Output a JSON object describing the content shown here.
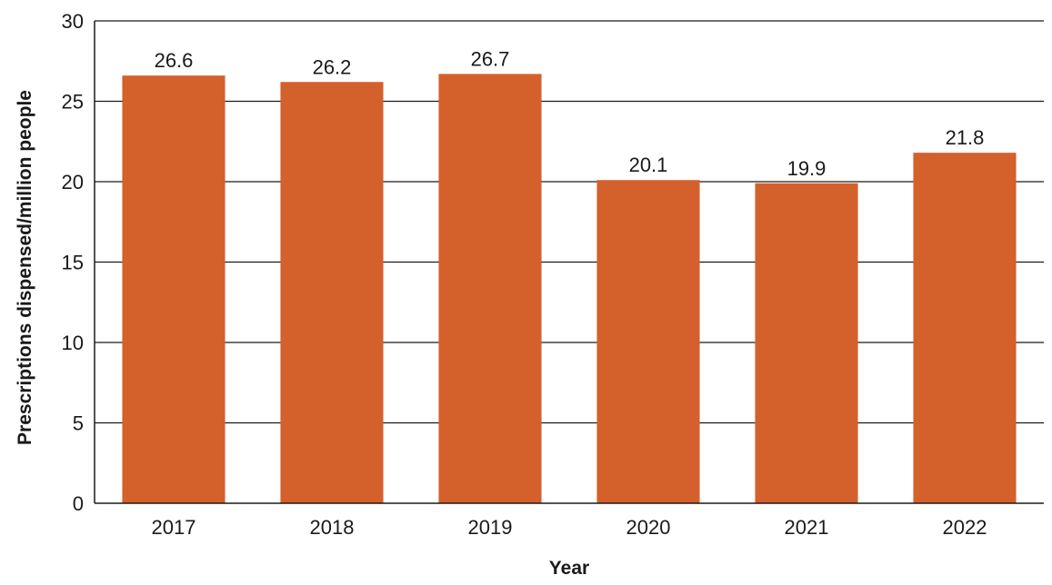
{
  "chart_data": {
    "type": "bar",
    "categories": [
      "2017",
      "2018",
      "2019",
      "2020",
      "2021",
      "2022"
    ],
    "values": [
      26.6,
      26.2,
      26.7,
      20.1,
      19.9,
      21.8
    ],
    "value_labels": [
      "26.6",
      "26.2",
      "26.7",
      "20.1",
      "19.9",
      "21.8"
    ],
    "title": "",
    "xlabel": "Year",
    "ylabel": "Prescriptions dispensed/million people",
    "ylim": [
      0,
      30
    ],
    "yticks": [
      0,
      5,
      10,
      15,
      20,
      25,
      30
    ],
    "ytick_labels": [
      "0",
      "5",
      "10",
      "15",
      "20",
      "25",
      "30"
    ],
    "grid": true,
    "legend": "none",
    "colors": {
      "bar": "#d4602c",
      "grid": "#1a1a1a",
      "text": "#1a1a1a"
    }
  }
}
